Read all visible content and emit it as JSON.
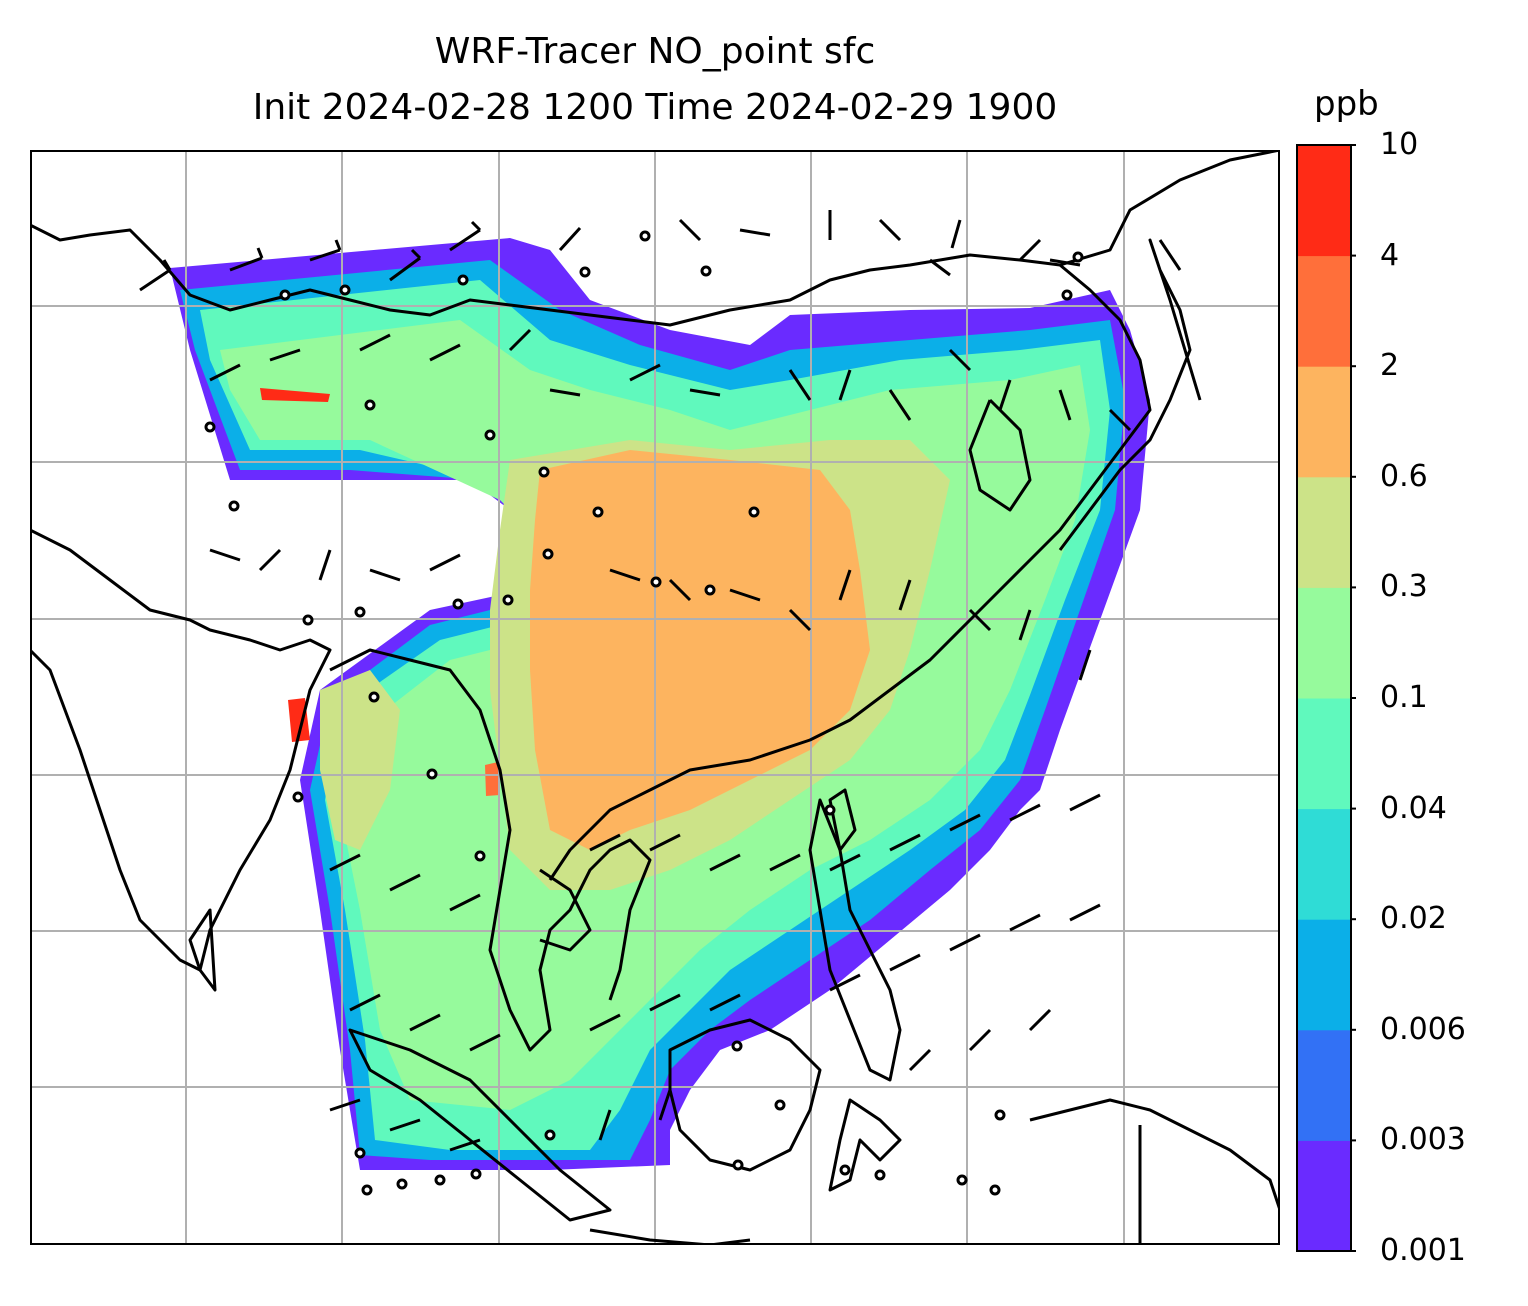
{
  "title": {
    "line1": "WRF-Tracer NO_point sfc",
    "line2": "Init 2024-02-28 1200 Time 2024-02-29 1900"
  },
  "colorbar": {
    "unit": "ppb",
    "levels": [
      "0.001",
      "0.003",
      "0.006",
      "0.02",
      "0.04",
      "0.1",
      "0.3",
      "0.6",
      "2",
      "4",
      "10"
    ],
    "colors": [
      "#6a2bff",
      "#3271f5",
      "#0bafe8",
      "#2fdcd6",
      "#60f9bd",
      "#96fa9c",
      "#cce388",
      "#fdb45f",
      "#ff6f3a",
      "#ff2b16"
    ]
  },
  "map": {
    "gridlines": true,
    "gridline_color": "#b0b0b0",
    "coastline_color": "#000000",
    "wind_barbs": true
  }
}
